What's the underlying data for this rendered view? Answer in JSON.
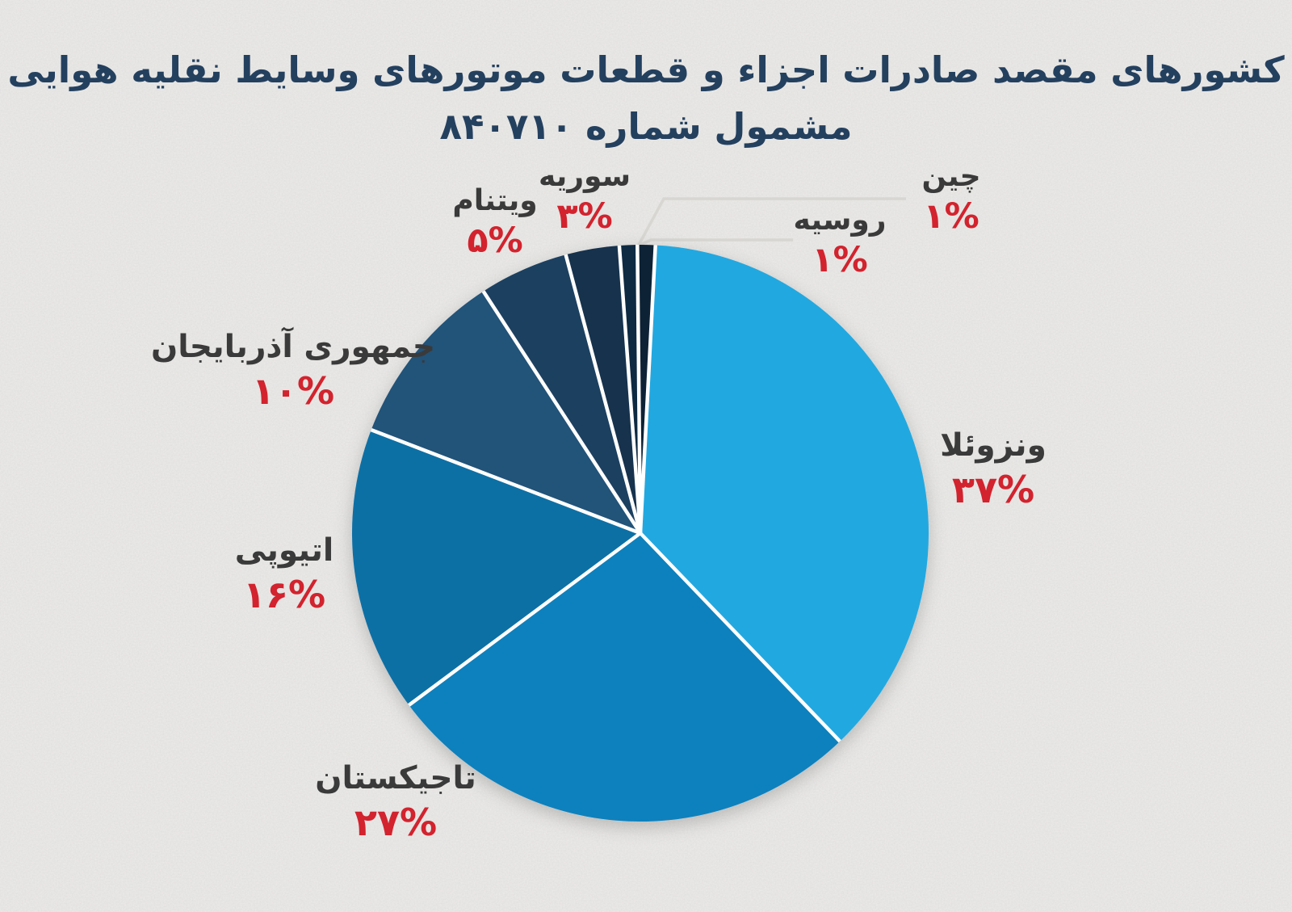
{
  "title": {
    "line1": "کشورهای مقصد صادرات اجزاء و قطعات موتورهای وسایط نقلیه هوایی",
    "line2": "مشمول شماره ۸۴۰۷۱۰"
  },
  "chart_data": {
    "type": "pie",
    "title": "کشورهای مقصد صادرات اجزاء و قطعات موتورهای وسایط نقلیه هوایی مشمول شماره ۸۴۰۷۱۰",
    "unit": "percent",
    "start_angle_deg": 3,
    "direction": "clockwise",
    "legend_position": "around-pie",
    "slices": [
      {
        "id": "venezuela",
        "label": "ونزوئلا",
        "value": 37,
        "display": "۳۷%",
        "color": "#21a8e0"
      },
      {
        "id": "tajikistan",
        "label": "تاجیکستان",
        "value": 27,
        "display": "۲۷%",
        "color": "#0e81bd"
      },
      {
        "id": "ethiopia",
        "label": "اتیوپی",
        "value": 16,
        "display": "۱۶%",
        "color": "#0b6fa5"
      },
      {
        "id": "azerbaijan",
        "label": "جمهوری آذربایجان",
        "value": 10,
        "display": "۱۰%",
        "color": "#245379"
      },
      {
        "id": "vietnam",
        "label": "ویتنام",
        "value": 5,
        "display": "۵%",
        "color": "#1c3f60"
      },
      {
        "id": "syria",
        "label": "سوریه",
        "value": 3,
        "display": "۳%",
        "color": "#16334e"
      },
      {
        "id": "russia",
        "label": "روسیه",
        "value": 1,
        "display": "۱%",
        "color": "#112b42"
      },
      {
        "id": "china",
        "label": "چین",
        "value": 1,
        "display": "۱%",
        "color": "#0d2134"
      }
    ],
    "colors": {
      "percent_text": "#d2232e",
      "label_text": "#3a3a3a",
      "title_text": "#24405f",
      "slice_separator": "#ffffff",
      "leader_line": "#d8d6d2",
      "background": "#ecebe9"
    }
  }
}
